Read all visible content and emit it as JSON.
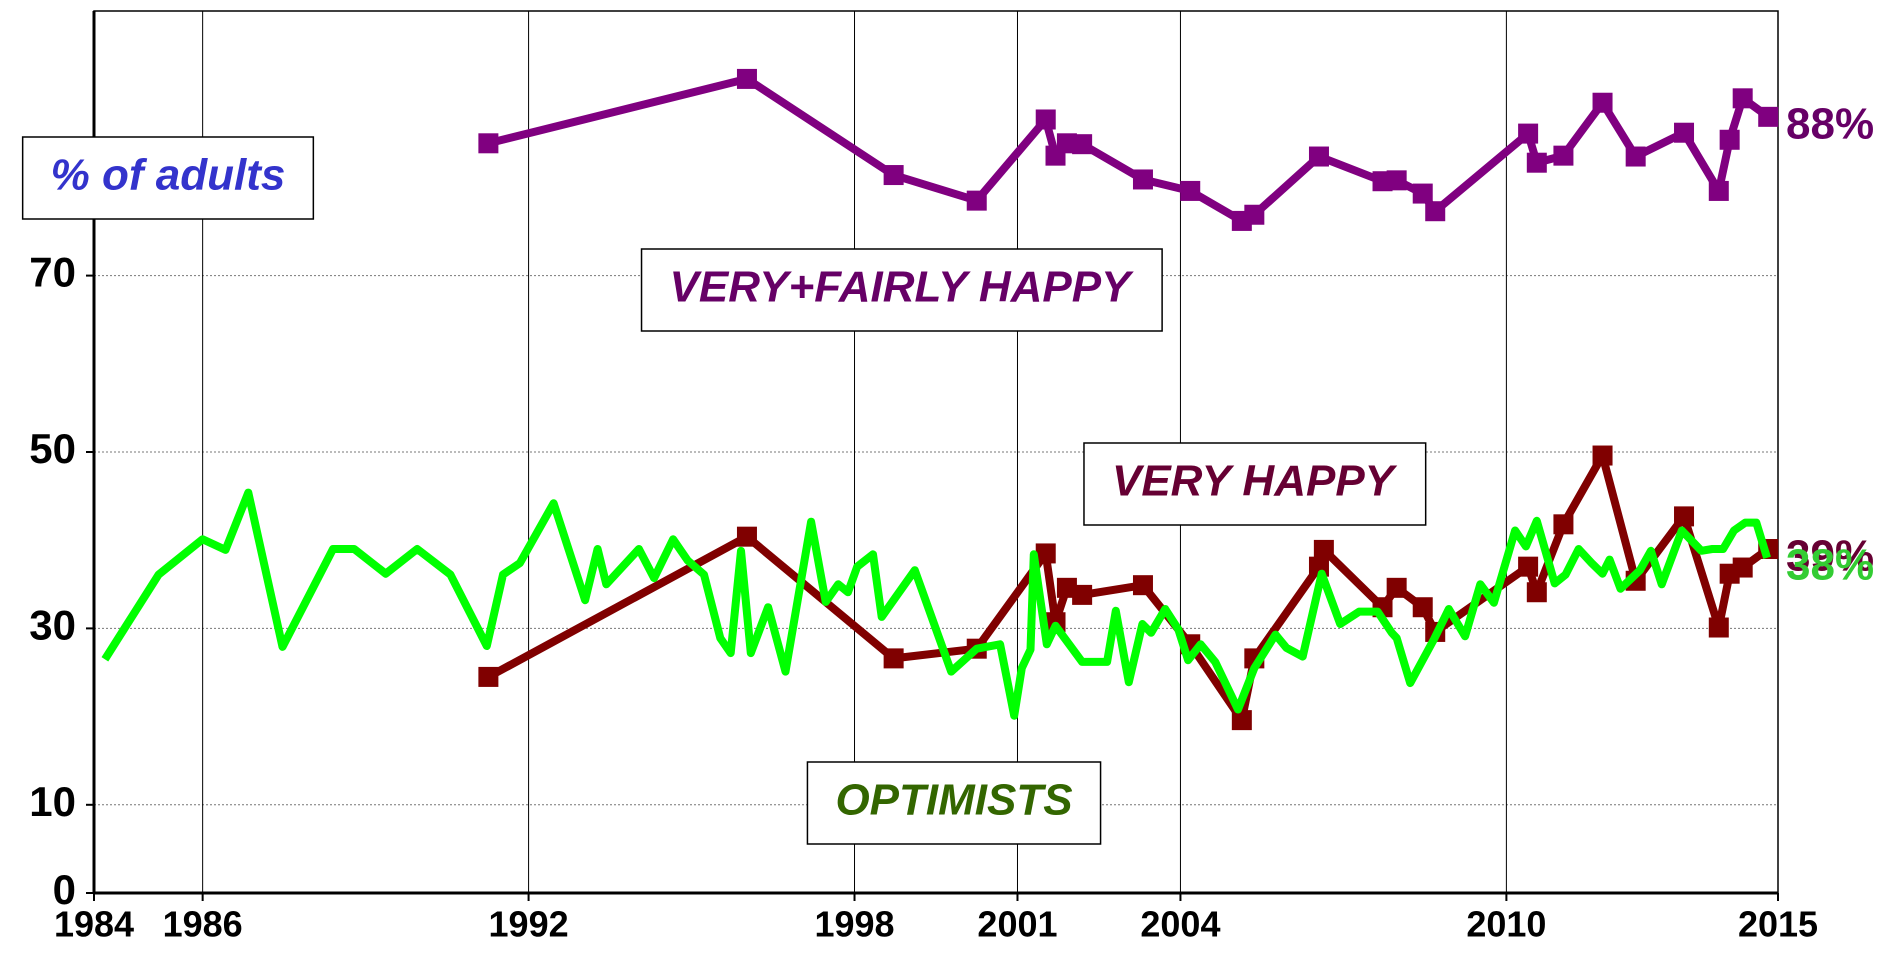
{
  "chart_data": {
    "type": "line",
    "ylabel": "% of adults",
    "xlim": [
      1984,
      2015
    ],
    "ylim": [
      0,
      100
    ],
    "xticks": [
      1984,
      1986,
      1992,
      1998,
      2001,
      2004,
      2010,
      2015
    ],
    "yticks": [
      0,
      10,
      30,
      50,
      70
    ],
    "xgrid": [
      1986,
      1992,
      1998,
      2001,
      2004,
      2010
    ],
    "ygrid": [
      10,
      30,
      50,
      70
    ],
    "series": [
      {
        "name": "VERY+FAIRLY HAPPY",
        "color": "#800080",
        "label_color": "#660066",
        "markers": true,
        "end_label": "88%",
        "x": [
          1991.26,
          1996.02,
          1998.72,
          2000.25,
          2001.52,
          2001.7,
          2001.91,
          2002.19,
          2003.31,
          2004.18,
          2005.13,
          2005.36,
          2006.55,
          2007.72,
          2007.98,
          2008.46,
          2008.69,
          2010.4,
          2010.56,
          2011.05,
          2011.77,
          2012.38,
          2013.27,
          2013.91,
          2014.11,
          2014.35,
          2014.82
        ],
        "values": [
          85.0,
          92.3,
          81.4,
          78.5,
          87.7,
          83.6,
          85.0,
          84.9,
          80.9,
          79.6,
          76.2,
          76.9,
          83.5,
          80.7,
          80.8,
          79.3,
          77.3,
          86.1,
          82.8,
          83.6,
          89.6,
          83.5,
          86.2,
          79.6,
          85.4,
          90.1,
          88
        ]
      },
      {
        "name": "VERY HAPPY",
        "color": "#800000",
        "label_color": "#660033",
        "markers": true,
        "end_label": "39%",
        "x": [
          1991.26,
          1996.02,
          1998.72,
          2000.25,
          2001.52,
          2001.7,
          2001.91,
          2002.19,
          2003.31,
          2004.18,
          2005.13,
          2005.36,
          2006.55,
          2006.64,
          2007.72,
          2007.98,
          2008.46,
          2008.69,
          2010.4,
          2010.56,
          2011.05,
          2011.77,
          2012.38,
          2013.27,
          2013.91,
          2014.11,
          2014.35,
          2014.82
        ],
        "values": [
          24.5,
          40.4,
          26.6,
          27.7,
          38.5,
          30.7,
          34.6,
          33.8,
          34.9,
          28.2,
          19.6,
          26.6,
          37.0,
          38.9,
          32.4,
          34.6,
          32.4,
          29.6,
          37.0,
          34.1,
          41.8,
          49.6,
          35.4,
          42.7,
          30.1,
          36.2,
          36.9,
          39
        ]
      },
      {
        "name": "OPTIMISTS",
        "color": "#00ff00",
        "label_color": "#33cc33",
        "markers": false,
        "end_label": "38%",
        "x": [
          1984.2,
          1985.19,
          1986,
          1986.42,
          1986.84,
          1987.47,
          1988.4,
          1988.79,
          1989.37,
          1989.95,
          1990.56,
          1991.23,
          1991.53,
          1991.84,
          1992.46,
          1993.04,
          1993.27,
          1993.43,
          1994.03,
          1994.31,
          1994.66,
          1994.93,
          1995.23,
          1995.53,
          1995.72,
          1995.91,
          1996.09,
          1996.41,
          1996.73,
          1997.2,
          1997.47,
          1997.7,
          1997.88,
          1998.05,
          1998.34,
          1998.5,
          1999.11,
          1999.78,
          2000.25,
          2000.68,
          2000.94,
          2001.08,
          2001.24,
          2001.3,
          2001.54,
          2001.7,
          2001.95,
          2002.19,
          2002.65,
          2002.81,
          2003.05,
          2003.3,
          2003.46,
          2003.72,
          2003.96,
          2004.14,
          2004.37,
          2004.64,
          2005.06,
          2005.36,
          2005.75,
          2005.95,
          2006.25,
          2006.6,
          2006.94,
          2007.29,
          2007.63,
          2007.89,
          2007.98,
          2008.23,
          2008.67,
          2008.94,
          2009.24,
          2009.52,
          2009.77,
          2010.16,
          2010.36,
          2010.56,
          2010.89,
          2011.09,
          2011.33,
          2011.57,
          2011.77,
          2011.9,
          2012.1,
          2012.46,
          2012.66,
          2012.86,
          2013.23,
          2013.59,
          2013.79,
          2013.99,
          2014.19,
          2014.4,
          2014.6,
          2014.8
        ],
        "values": [
          26.5,
          36.1,
          40.1,
          38.9,
          45.4,
          27.9,
          39.0,
          39.0,
          36.2,
          39.0,
          36.1,
          28.0,
          36.1,
          37.4,
          44.2,
          33.2,
          39.0,
          35.0,
          39.0,
          35.7,
          40.1,
          37.7,
          36.1,
          28.9,
          27.2,
          38.8,
          27.2,
          32.4,
          25.1,
          42.1,
          33.0,
          35.0,
          34.1,
          37.0,
          38.4,
          31.3,
          36.6,
          25.1,
          27.7,
          28.2,
          20.1,
          25.5,
          27.6,
          38.4,
          28.2,
          30.3,
          28.2,
          26.2,
          26.2,
          32.0,
          23.9,
          30.5,
          29.5,
          32.2,
          29.9,
          26.4,
          28.2,
          26.2,
          20.8,
          25.5,
          29.3,
          27.8,
          26.8,
          36.2,
          30.5,
          31.9,
          31.9,
          29.5,
          28.9,
          23.8,
          28.8,
          32.2,
          29.1,
          35.0,
          32.9,
          41.1,
          39.3,
          42.2,
          35.1,
          36.1,
          39.0,
          37.4,
          36.2,
          37.8,
          34.5,
          36.6,
          38.8,
          35.0,
          41.1,
          38.8,
          39.0,
          39.0,
          41.1,
          42.0,
          42.0,
          38
        ]
      }
    ]
  }
}
